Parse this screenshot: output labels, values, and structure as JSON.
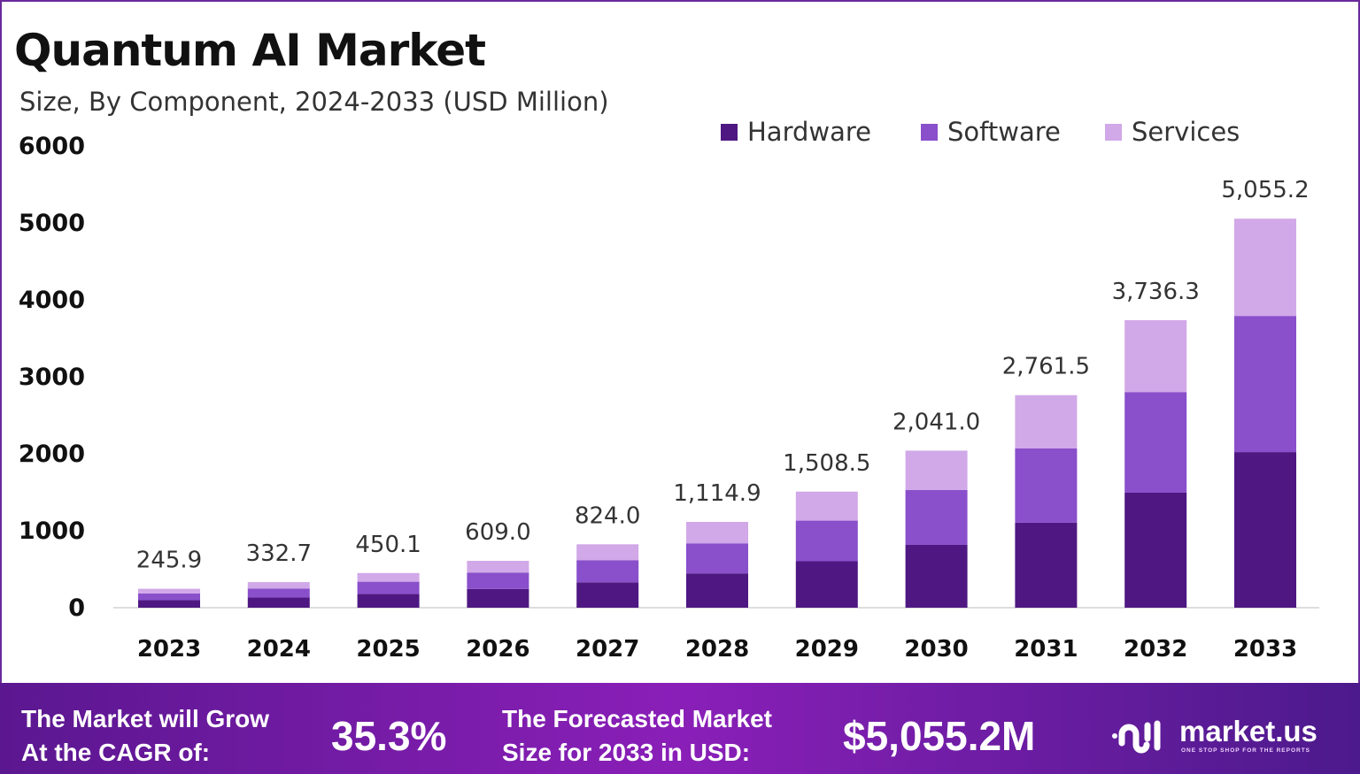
{
  "chart_data": {
    "type": "bar",
    "stacked": true,
    "title": "Quantum AI Market",
    "subtitle": "Size, By Component, 2024-2033 (USD Million)",
    "xlabel": "",
    "ylabel": "",
    "ylim": [
      0,
      6000
    ],
    "yticks": [
      "0",
      "1000",
      "2000",
      "3000",
      "4000",
      "5000",
      "6000"
    ],
    "grid": false,
    "legend_position": "top-right",
    "categories": [
      "2023",
      "2024",
      "2025",
      "2026",
      "2027",
      "2028",
      "2029",
      "2030",
      "2031",
      "2032",
      "2033"
    ],
    "series": [
      {
        "name": "Hardware",
        "color": "#4e1782",
        "values": [
          98.4,
          133.1,
          180.0,
          243.6,
          329.6,
          446.0,
          603.4,
          816.4,
          1104.6,
          1494.5,
          2022.1
        ]
      },
      {
        "name": "Software",
        "color": "#8a4fcb",
        "values": [
          86.1,
          116.4,
          157.5,
          213.2,
          288.4,
          390.2,
          528.0,
          714.4,
          966.5,
          1307.7,
          1769.3
        ]
      },
      {
        "name": "Services",
        "color": "#d1a8e8",
        "values": [
          61.4,
          83.2,
          112.6,
          152.2,
          206.0,
          278.7,
          377.1,
          510.2,
          690.4,
          934.1,
          1263.8
        ]
      }
    ],
    "totals": [
      245.9,
      332.7,
      450.1,
      609.0,
      824.0,
      1114.9,
      1508.5,
      2041.0,
      2761.5,
      3736.3,
      5055.2
    ],
    "total_labels": [
      "245.9",
      "332.7",
      "450.1",
      "609.0",
      "824.0",
      "1,114.9",
      "1,508.5",
      "2,041.0",
      "2,761.5",
      "3,736.3",
      "5,055.2"
    ]
  },
  "footer": {
    "cagr_line1": "The Market will Grow",
    "cagr_line2": "At the CAGR of:",
    "cagr_value": "35.3%",
    "forecast_line1": "The Forecasted Market",
    "forecast_line2": "Size for 2033 in USD:",
    "forecast_value": "$5,055.2M",
    "logo_text": "market.us",
    "logo_tagline": "ONE STOP SHOP FOR THE REPORTS"
  }
}
